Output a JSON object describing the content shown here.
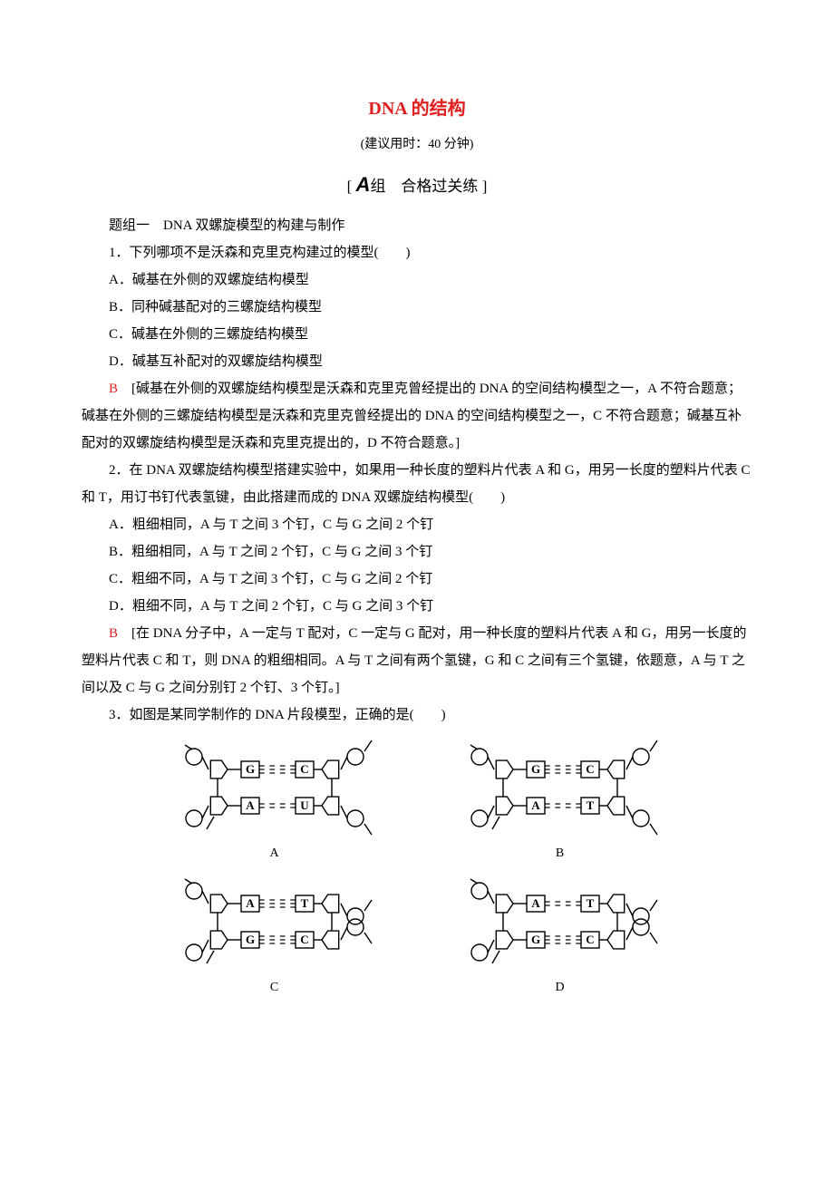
{
  "title": "DNA 的结构",
  "time_note": "(建议用时：40 分钟)",
  "section_label_left": "[ ",
  "section_label_a": "A",
  "section_label_mid": "组　合格过关练",
  "section_label_right": " ]",
  "group1_label": "题组一　DNA 双螺旋模型的构建与制作",
  "q1": {
    "stem": "1．下列哪项不是沃森和克里克构建过的模型(　　)",
    "opts": {
      "A": "A．碱基在外侧的双螺旋结构模型",
      "B": "B．同种碱基配对的三螺旋结构模型",
      "C": "C．碱基在外侧的三螺旋结构模型",
      "D": "D．碱基互补配对的双螺旋结构模型"
    },
    "answer_letter": "B",
    "explain": "　[碱基在外侧的双螺旋结构模型是沃森和克里克曾经提出的 DNA 的空间结构模型之一，A 不符合题意；碱基在外侧的三螺旋结构模型是沃森和克里克曾经提出的 DNA 的空间结构模型之一，C 不符合题意；碱基互补配对的双螺旋结构模型是沃森和克里克提出的，D 不符合题意。]"
  },
  "q2": {
    "stem": "2．在 DNA 双螺旋结构模型搭建实验中，如果用一种长度的塑料片代表 A 和 G，用另一长度的塑料片代表 C 和 T，用订书钉代表氢键，由此搭建而成的 DNA 双螺旋结构模型(　　)",
    "opts": {
      "A": "A．粗细相同，A 与 T 之间 3 个钉，C 与 G 之间 2 个钉",
      "B": "B．粗细相同，A 与 T 之间 2 个钉，C 与 G 之间 3 个钉",
      "C": "C．粗细不同，A 与 T 之间 3 个钉，C 与 G 之间 2 个钉",
      "D": "D．粗细不同，A 与 T 之间 2 个钉，C 与 G 之间 3 个钉"
    },
    "answer_letter": "B",
    "explain": "　[在 DNA 分子中，A 一定与 T 配对，C 一定与 G 配对，用一种长度的塑料片代表 A 和 G，用另一长度的塑料片代表 C 和 T，则 DNA 的粗细相同。A 与 T 之间有两个氢键，G 和 C 之间有三个氢键，依题意，A 与 T 之间以及 C 与 G 之间分别钉 2 个钉、3 个钉。]"
  },
  "q3": {
    "stem": "3．如图是某同学制作的 DNA 片段模型，正确的是(　　)",
    "labels": {
      "A": "A",
      "B": "B",
      "C": "C",
      "D": "D"
    }
  },
  "diagrams": {
    "stroke": "#000000",
    "fill": "#ffffff",
    "font": "13px serif",
    "A": {
      "top": [
        "G",
        "C",
        3
      ],
      "bot": [
        "A",
        "U",
        2
      ],
      "left_dir": "same",
      "right_dir": "same"
    },
    "B": {
      "top": [
        "G",
        "C",
        3
      ],
      "bot": [
        "A",
        "T",
        2
      ],
      "left_dir": "same",
      "right_dir": "same"
    },
    "C": {
      "top": [
        "A",
        "T",
        3
      ],
      "bot": [
        "G",
        "C",
        3
      ],
      "left_dir": "same",
      "right_dir": "opp"
    },
    "D": {
      "top": [
        "A",
        "T",
        2
      ],
      "bot": [
        "G",
        "C",
        3
      ],
      "left_dir": "opp",
      "right_dir": "opp"
    }
  }
}
